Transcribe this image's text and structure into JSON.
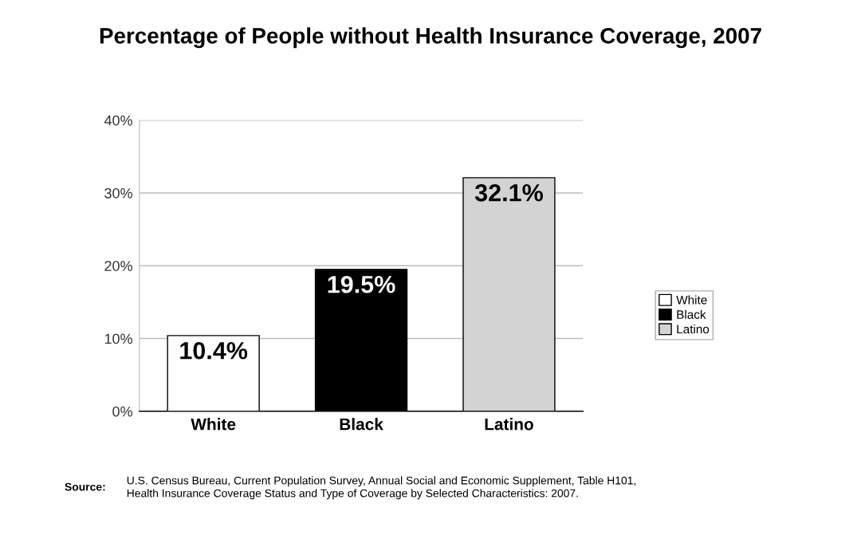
{
  "chart_data": {
    "type": "bar",
    "title": "Percentage of People without Health Insurance Coverage, 2007",
    "categories": [
      "White",
      "Black",
      "Latino"
    ],
    "series": [
      {
        "name": "White",
        "color": "#ffffff",
        "values": [
          10.4,
          null,
          null
        ],
        "value_labels": [
          "10.4%",
          null,
          null
        ]
      },
      {
        "name": "Black",
        "color": "#000000",
        "values": [
          null,
          19.5,
          null
        ],
        "value_labels": [
          null,
          "19.5%",
          null
        ]
      },
      {
        "name": "Latino",
        "color": "#d3d3d3",
        "values": [
          null,
          null,
          32.1
        ],
        "value_labels": [
          null,
          null,
          "32.1%"
        ]
      }
    ],
    "ylim": [
      0,
      40
    ],
    "yticks": [
      {
        "value": 0,
        "label": "0%"
      },
      {
        "value": 10,
        "label": "10%"
      },
      {
        "value": 20,
        "label": "20%"
      },
      {
        "value": 30,
        "label": "30%"
      },
      {
        "value": 40,
        "label": "40%"
      }
    ],
    "grid": "y",
    "legend": "right",
    "annotations": [
      "Source:",
      "U.S. Census Bureau, Current Population Survey, Annual Social and Economic Supplement, Table H101,\nHealth Insurance Coverage Status and Type of Coverage by Selected Characteristics: 2007."
    ]
  }
}
